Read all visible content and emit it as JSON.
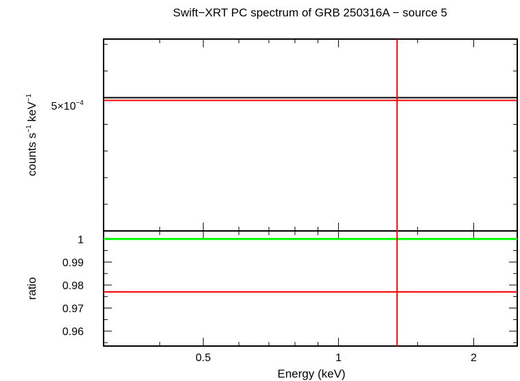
{
  "chart_data": {
    "type": "scatter",
    "title": "Swift−XRT PC spectrum of GRB 250316A − source 5",
    "xlabel": "Energy (keV)",
    "x_scale": "log",
    "xlim": [
      0.3,
      2.5
    ],
    "x_ticks": [
      "0.5",
      "1",
      "2"
    ],
    "x_tick_values": [
      0.5,
      1,
      2
    ],
    "colors": {
      "data": "#ff0000",
      "model": "#000000",
      "unity": "#00ff00",
      "frame": "#000000"
    },
    "panels": [
      {
        "name": "spectrum",
        "ylabel_main": "counts s",
        "ylabel_sup1": "−1",
        "ylabel_mid": " keV",
        "ylabel_sup2": "−1",
        "ytick_mantissa": "5×10",
        "ytick_exp": "−4",
        "ytick_value": 0.0005,
        "ylim": [
          0.0,
          0.00072
        ],
        "model_y": 0.0005,
        "data": {
          "x": 1.35,
          "y": 0.00049,
          "xerr": [
            0.3,
            2.5
          ],
          "yerr": [
            0.0,
            0.00072
          ]
        }
      },
      {
        "name": "ratio",
        "ylabel": "ratio",
        "ylim": [
          0.9535,
          1.0035
        ],
        "yticks": [
          "1",
          "0.99",
          "0.98",
          "0.97",
          "0.96"
        ],
        "ytick_values": [
          1.0,
          0.99,
          0.98,
          0.97,
          0.96
        ],
        "unity_y": 1.0,
        "data": {
          "x": 1.35,
          "y": 0.977,
          "xerr": [
            0.3,
            2.5
          ],
          "yerr": [
            0.9535,
            1.0035
          ]
        }
      }
    ]
  }
}
